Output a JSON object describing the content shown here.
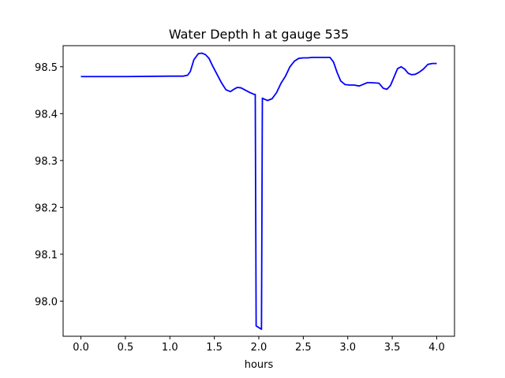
{
  "chart_data": {
    "type": "line",
    "title": "Water Depth h at gauge 535",
    "xlabel": "hours",
    "ylabel": "",
    "xlim": [
      -0.2,
      4.2
    ],
    "ylim": [
      97.925,
      98.545
    ],
    "xticks": [
      0.0,
      0.5,
      1.0,
      1.5,
      2.0,
      2.5,
      3.0,
      3.5,
      4.0
    ],
    "xtick_labels": [
      "0.0",
      "0.5",
      "1.0",
      "1.5",
      "2.0",
      "2.5",
      "3.0",
      "3.5",
      "4.0"
    ],
    "yticks": [
      98.0,
      98.1,
      98.2,
      98.3,
      98.4,
      98.5
    ],
    "ytick_labels": [
      "98.0",
      "98.1",
      "98.2",
      "98.3",
      "98.4",
      "98.5"
    ],
    "grid": false,
    "series": [
      {
        "color": "#0000ff",
        "x": [
          0.0,
          0.5,
          1.0,
          1.15,
          1.2,
          1.23,
          1.27,
          1.32,
          1.36,
          1.4,
          1.44,
          1.48,
          1.53,
          1.58,
          1.63,
          1.68,
          1.72,
          1.76,
          1.8,
          1.85,
          1.9,
          1.95,
          1.96,
          1.97,
          2.03,
          2.04,
          2.06,
          2.1,
          2.15,
          2.2,
          2.25,
          2.3,
          2.35,
          2.4,
          2.45,
          2.5,
          2.55,
          2.6,
          2.7,
          2.8,
          2.84,
          2.88,
          2.92,
          2.97,
          3.02,
          3.07,
          3.13,
          3.18,
          3.22,
          3.27,
          3.35,
          3.4,
          3.44,
          3.48,
          3.52,
          3.56,
          3.6,
          3.64,
          3.68,
          3.72,
          3.76,
          3.8,
          3.85,
          3.9,
          3.95,
          4.0
        ],
        "y": [
          98.479,
          98.479,
          98.48,
          98.48,
          98.482,
          98.49,
          98.515,
          98.528,
          98.529,
          98.526,
          98.518,
          98.502,
          98.484,
          98.466,
          98.451,
          98.447,
          98.452,
          98.456,
          98.455,
          98.45,
          98.445,
          98.441,
          98.441,
          97.947,
          97.94,
          98.433,
          98.431,
          98.428,
          98.432,
          98.445,
          98.465,
          98.48,
          98.5,
          98.512,
          98.518,
          98.519,
          98.519,
          98.52,
          98.52,
          98.52,
          98.51,
          98.488,
          98.47,
          98.462,
          98.461,
          98.461,
          98.459,
          98.463,
          98.466,
          98.466,
          98.465,
          98.454,
          98.452,
          98.46,
          98.478,
          98.496,
          98.5,
          98.495,
          98.486,
          98.483,
          98.484,
          98.488,
          98.495,
          98.505,
          98.507,
          98.507
        ]
      }
    ]
  }
}
